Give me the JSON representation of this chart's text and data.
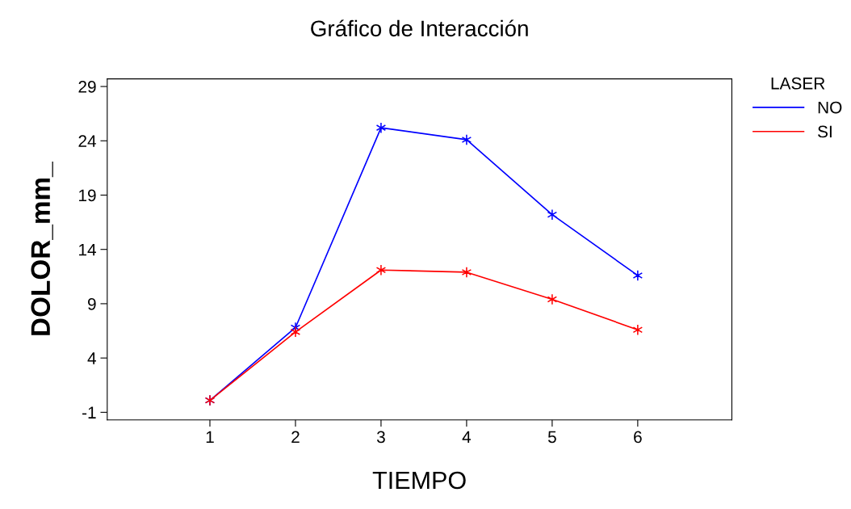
{
  "chart_data": {
    "type": "line",
    "title": "Gráfico de Interacción",
    "xlabel": "TIEMPO",
    "ylabel": "DOLOR_mm_",
    "legend_title": "LASER",
    "x": [
      1,
      2,
      3,
      4,
      5,
      6
    ],
    "series": [
      {
        "name": "NO",
        "color": "#0000ff",
        "values": [
          0.1,
          6.8,
          25.2,
          24.1,
          17.2,
          11.6
        ]
      },
      {
        "name": "SI",
        "color": "#ff0000",
        "values": [
          0.1,
          6.4,
          12.1,
          11.9,
          9.4,
          6.6
        ]
      }
    ],
    "marker": "cross",
    "xlim": [
      -0.2,
      7.1
    ],
    "ylim": [
      -1.7,
      29.7
    ],
    "xticks": [
      1,
      2,
      3,
      4,
      5,
      6
    ],
    "yticks": [
      -1,
      4,
      9,
      14,
      19,
      24,
      29
    ],
    "grid": false,
    "legend": "top right"
  }
}
